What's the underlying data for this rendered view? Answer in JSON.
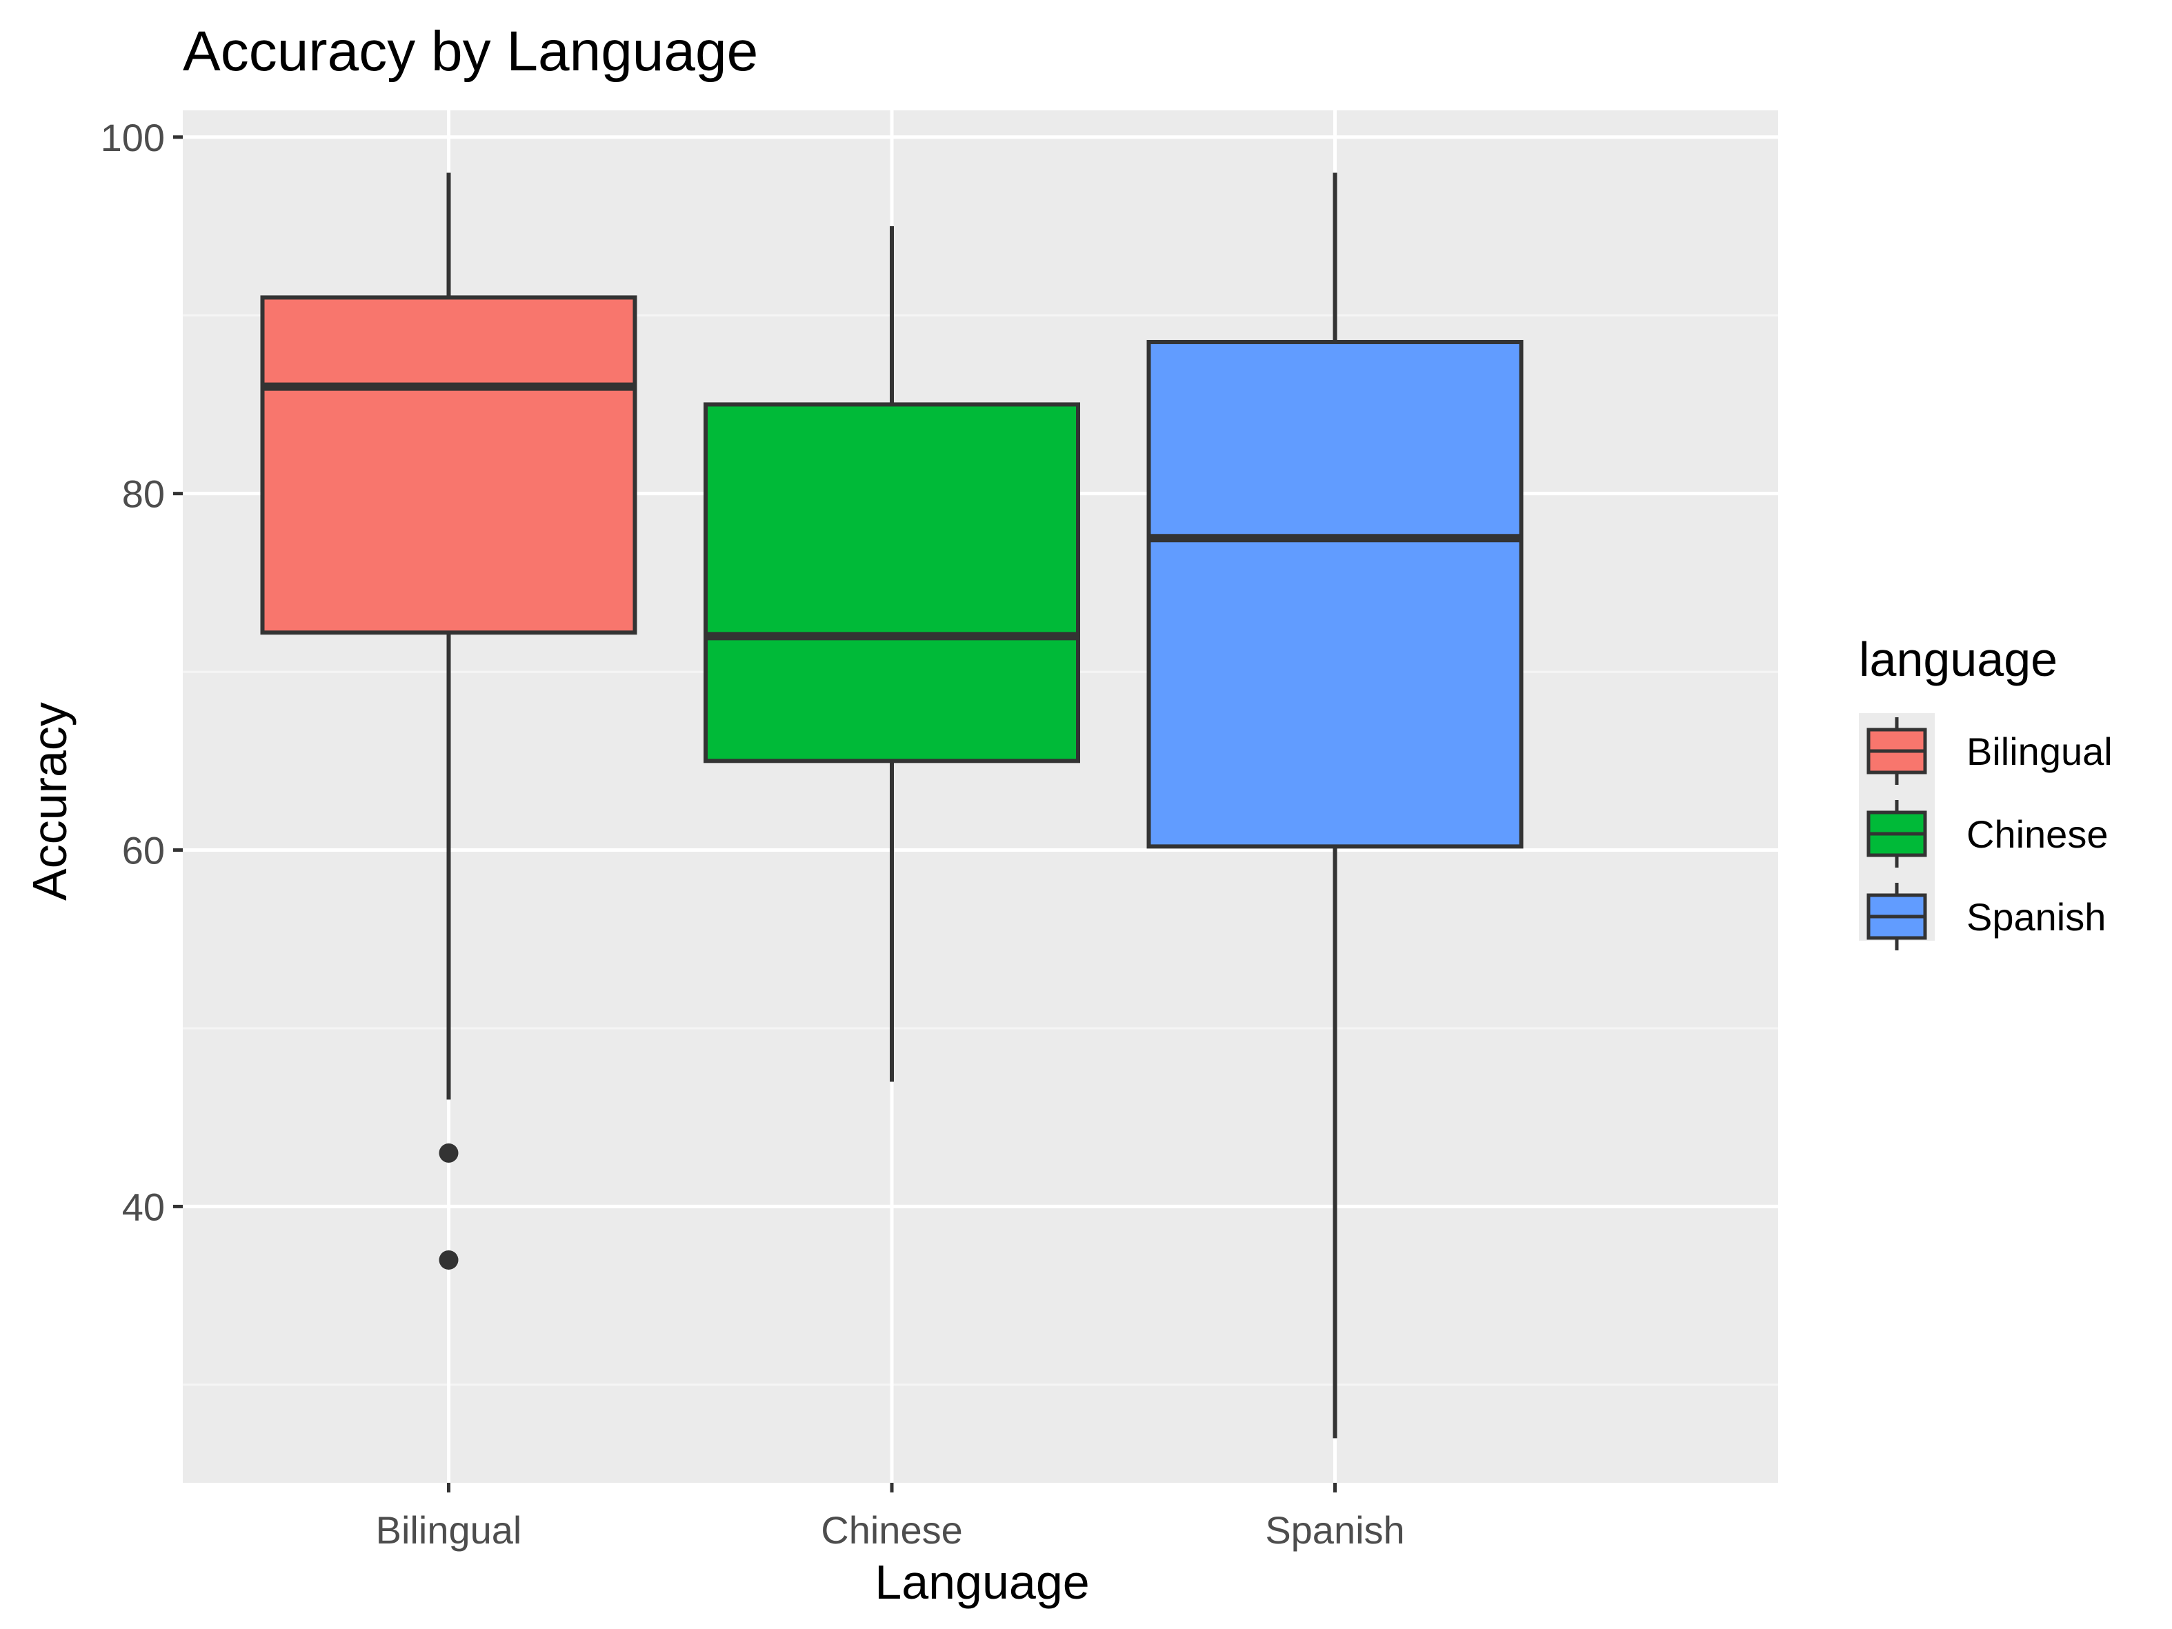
{
  "chart_data": {
    "type": "boxplot",
    "title": "Accuracy by Language",
    "xlabel": "Language",
    "ylabel": "Accuracy",
    "ylim": [
      24.5,
      101.5
    ],
    "yticks": [
      40,
      60,
      80,
      100
    ],
    "grid": true,
    "categories": [
      "Bilingual",
      "Chinese",
      "Spanish"
    ],
    "series": [
      {
        "name": "Bilingual",
        "color": "#F8766D",
        "whisker_low": 46,
        "q1": 72.2,
        "median": 86,
        "q3": 91,
        "whisker_high": 98,
        "outliers": [
          43,
          37
        ]
      },
      {
        "name": "Chinese",
        "color": "#00BA38",
        "whisker_low": 47,
        "q1": 65,
        "median": 72,
        "q3": 85,
        "whisker_high": 95,
        "outliers": []
      },
      {
        "name": "Spanish",
        "color": "#619CFF",
        "whisker_low": 27,
        "q1": 60.2,
        "median": 77.5,
        "q3": 88.5,
        "whisker_high": 98,
        "outliers": []
      }
    ],
    "legend": {
      "title": "language",
      "position": "right",
      "items": [
        "Bilingual",
        "Chinese",
        "Spanish"
      ]
    }
  },
  "colors": {
    "panel_background": "#EBEBEB",
    "grid_major": "#FFFFFF",
    "grid_minor": "#F5F5F5",
    "box_outline": "#333333",
    "axis_text": "#4D4D4D",
    "title_text": "#000000"
  }
}
